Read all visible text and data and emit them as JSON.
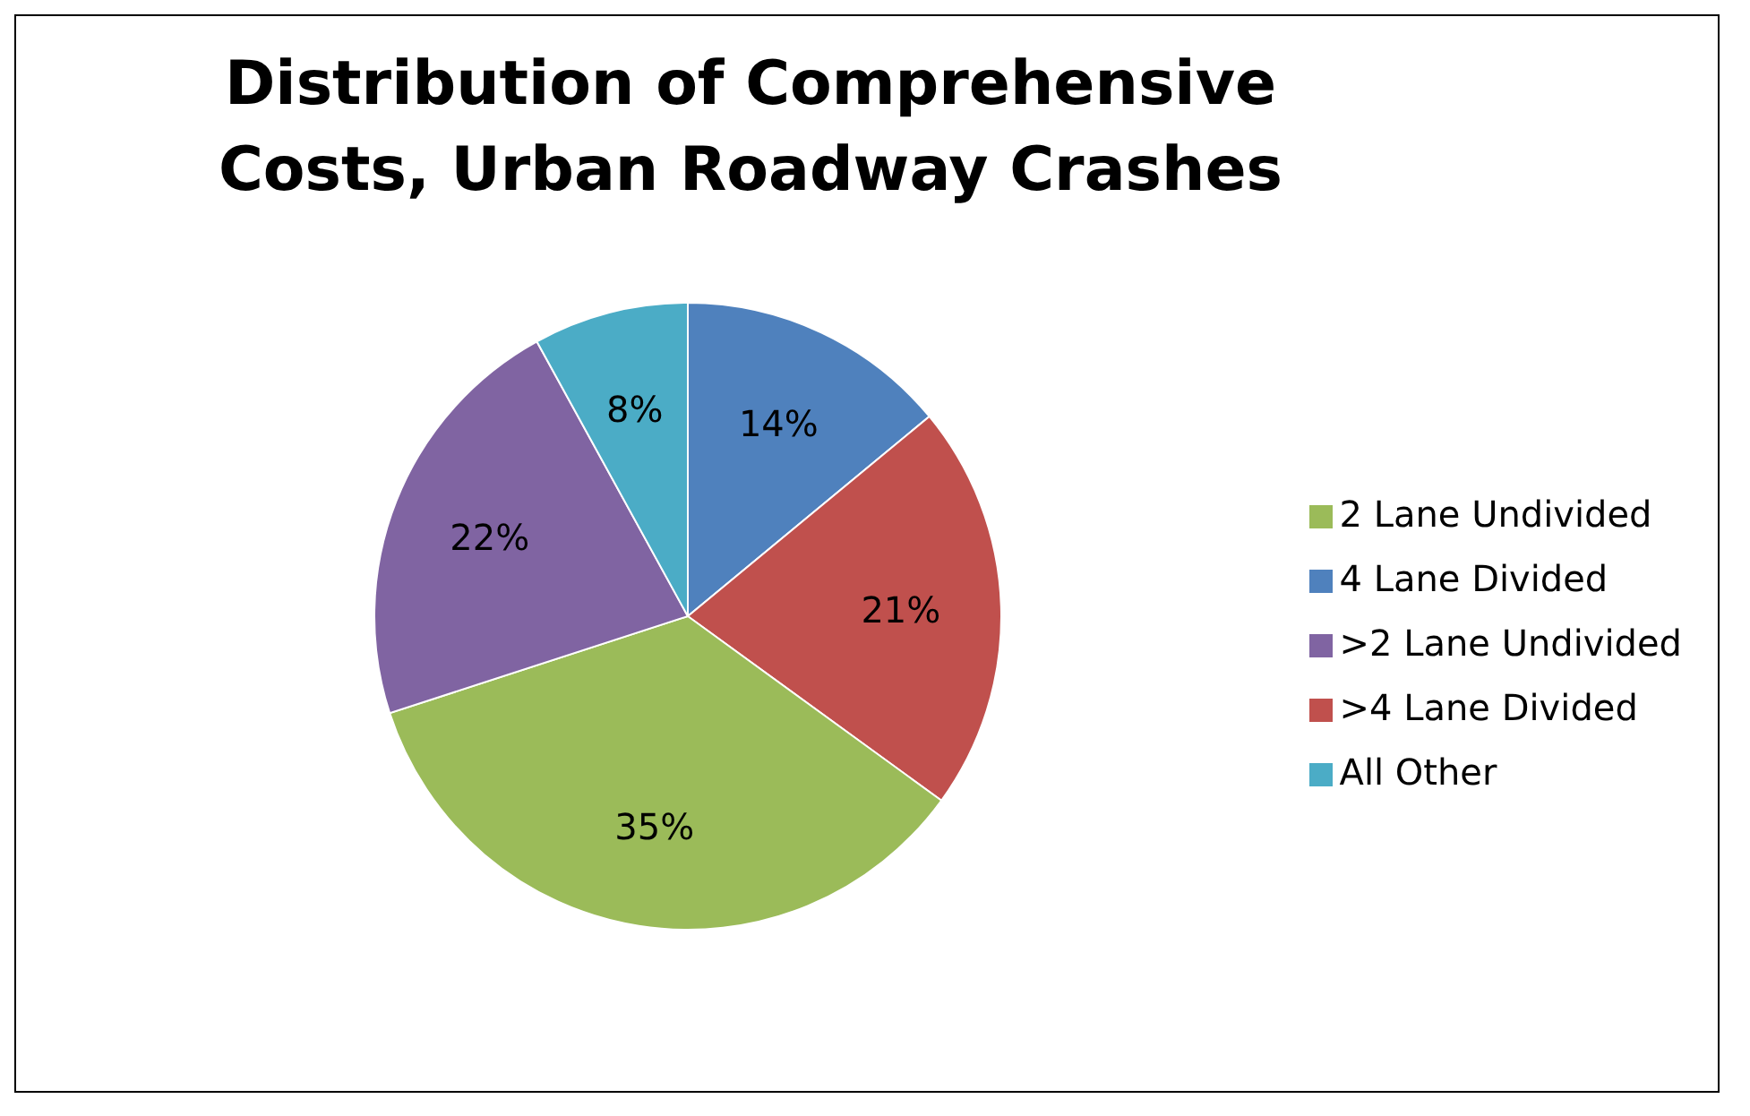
{
  "chart_data": {
    "type": "pie",
    "title": "Distribution of Comprehensive Costs, Urban Roadway Crashes",
    "categories": [
      "4 Lane Divided",
      ">4 Lane Divided",
      "2 Lane Undivided",
      ">2 Lane Undivided",
      "All Other"
    ],
    "values": [
      14,
      21,
      35,
      22,
      8
    ],
    "colors": [
      "#4f81bd",
      "#c0504d",
      "#9bbb59",
      "#8064a2",
      "#4bacc6"
    ],
    "value_labels": [
      "14%",
      "21%",
      "35%",
      "22%",
      "8%"
    ],
    "legend": "right"
  }
}
